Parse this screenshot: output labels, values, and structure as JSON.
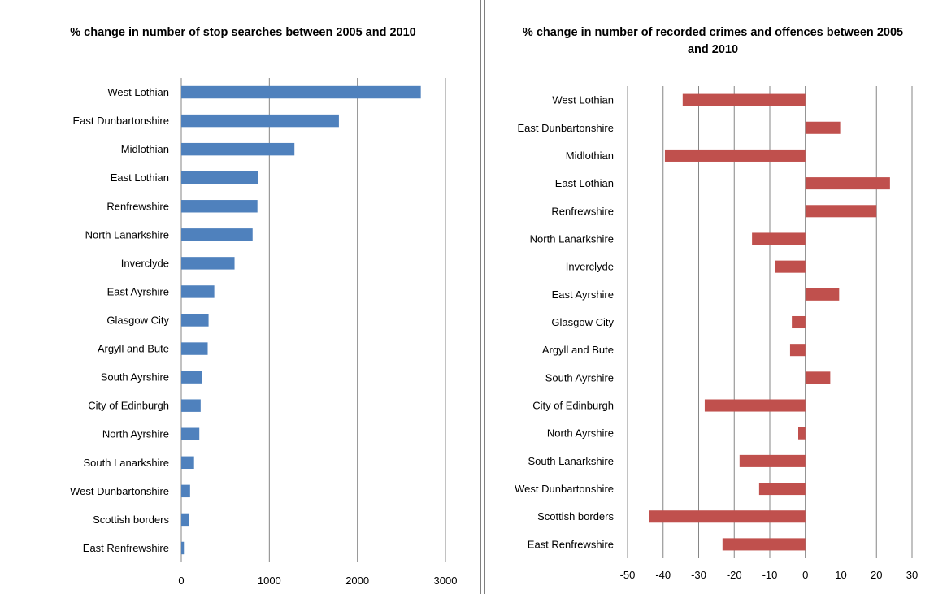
{
  "chart_data": [
    {
      "type": "bar",
      "orientation": "horizontal",
      "title": "% change in number of stop searches between 2005 and 2010",
      "categories": [
        "West Lothian",
        "East Dunbartonshire",
        "Midlothian",
        "East Lothian",
        "Renfrewshire",
        "North Lanarkshire",
        "Inverclyde",
        "East Ayrshire",
        "Glasgow City",
        "Argyll and Bute",
        "South Ayrshire",
        "City of Edinburgh",
        "North Ayrshire",
        "South Lanarkshire",
        "West Dunbartonshire",
        "Scottish borders",
        "East Renfrewshire"
      ],
      "values": [
        2720,
        1790,
        1285,
        875,
        865,
        810,
        605,
        375,
        310,
        300,
        240,
        220,
        205,
        145,
        100,
        90,
        30
      ],
      "xlim": [
        0,
        3000
      ],
      "ticks": [
        0,
        1000,
        2000,
        3000
      ],
      "tick_labels": [
        "0",
        "1000",
        "2000",
        "3000"
      ],
      "grid": true,
      "color": "#4f81bd"
    },
    {
      "type": "bar",
      "orientation": "horizontal",
      "title": "% change in number of recorded crimes and offences between 2005 and 2010",
      "categories": [
        "West Lothian",
        "East Dunbartonshire",
        "Midlothian",
        "East Lothian",
        "Renfrewshire",
        "North Lanarkshire",
        "Inverclyde",
        "East Ayrshire",
        "Glasgow City",
        "Argyll and Bute",
        "South Ayrshire",
        "City of Edinburgh",
        "North Ayrshire",
        "South Lanarkshire",
        "West Dunbartonshire",
        "Scottish borders",
        "East Renfrewshire"
      ],
      "values": [
        -34.5,
        9.8,
        -39.5,
        23.8,
        20,
        -15,
        -8.5,
        9.5,
        -3.8,
        -4.3,
        7,
        -28.3,
        -2,
        -18.5,
        -13,
        -44,
        -23.3
      ],
      "xlim": [
        -50,
        30
      ],
      "ticks": [
        -50,
        -40,
        -30,
        -20,
        -10,
        0,
        10,
        20,
        30
      ],
      "tick_labels": [
        "-50",
        "-40",
        "-30",
        "-20",
        "-10",
        "0",
        "10",
        "20",
        "30"
      ],
      "grid": true,
      "color": "#c0504d"
    }
  ]
}
